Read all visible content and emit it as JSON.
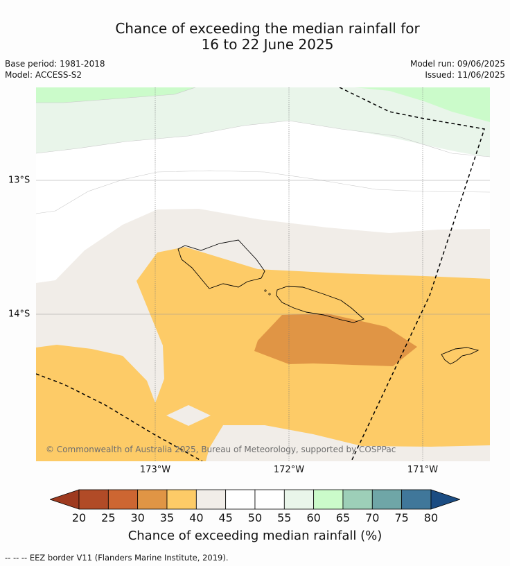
{
  "title_line1": "Chance of exceeding the median rainfall for",
  "title_line2": "16 to 22 June 2025",
  "base_period": "Base period: 1981-2018",
  "model": "Model: ACCESS-S2",
  "model_run": "Model run: 09/06/2025",
  "issued": "Issued: 11/06/2025",
  "lon_labels": [
    "173°W",
    "172°W",
    "171°W"
  ],
  "lat_labels": [
    "13°S",
    "14°S"
  ],
  "copyright": "© Commonwealth of Australia 2025, Bureau of Meteorology, supported by COSPPac",
  "colorbar": {
    "ticks": [
      "20",
      "25",
      "30",
      "35",
      "40",
      "45",
      "50",
      "55",
      "60",
      "65",
      "70",
      "75",
      "80"
    ],
    "label": "Chance of exceeding median rainfall (%)",
    "colors": {
      "below_20": "#9e3a1f",
      "20_25": "#b14b27",
      "25_30": "#cd6632",
      "30_35": "#e09545",
      "35_40": "#fdcb67",
      "40_45": "#f1ede8",
      "45_50": "#ffffff",
      "50_55": "#ffffff",
      "55_60": "#e9f5ea",
      "60_65": "#cbfbca",
      "65_70": "#9dcfb8",
      "70_75": "#6fa6a7",
      "75_80": "#40779a",
      "above_80": "#1b4c82"
    }
  },
  "legend_footnote": "--  --  -- EEZ border V11 (Flanders Marine Institute, 2019)."
}
